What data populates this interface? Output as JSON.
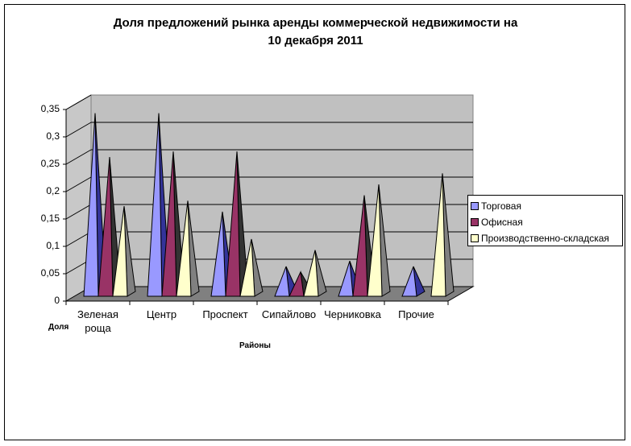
{
  "chart_data": {
    "type": "bar",
    "subtype": "3d-pyramid",
    "title": "Доля предложений рынка аренды коммерческой недвижимости на 10 декабря 2011",
    "title_lines": [
      "Доля предложений рынка аренды коммерческой недвижимости на",
      "10 декабря 2011"
    ],
    "xlabel": "Районы",
    "ylabel": "Доля",
    "categories": [
      [
        "Зеленая",
        "роща"
      ],
      [
        "Центр"
      ],
      [
        "Проспект"
      ],
      [
        "Сипайлово"
      ],
      [
        "Черниковка"
      ],
      [
        "Прочие"
      ]
    ],
    "category_names": [
      "Зеленая роща",
      "Центр",
      "Проспект",
      "Сипайлово",
      "Черниковка",
      "Прочие"
    ],
    "yticks": [
      "0",
      "0,05",
      "0,1",
      "0,15",
      "0,2",
      "0,25",
      "0,3",
      "0,35"
    ],
    "ylim": [
      0,
      0.35
    ],
    "grid": true,
    "legend_position": "right",
    "series": [
      {
        "name": "Торговая",
        "color": "#9999ff",
        "side": "#333399",
        "values": [
          0.33,
          0.33,
          0.15,
          0.05,
          0.06,
          0.05
        ]
      },
      {
        "name": "Офисная",
        "color": "#993366",
        "side": "#333333",
        "values": [
          0.25,
          0.26,
          0.26,
          0.04,
          0.18,
          0
        ]
      },
      {
        "name": "Производственно-складская",
        "color": "#ffffcc",
        "side": "#808080",
        "values": [
          0.16,
          0.17,
          0.1,
          0.08,
          0.2,
          0.22
        ]
      }
    ]
  }
}
